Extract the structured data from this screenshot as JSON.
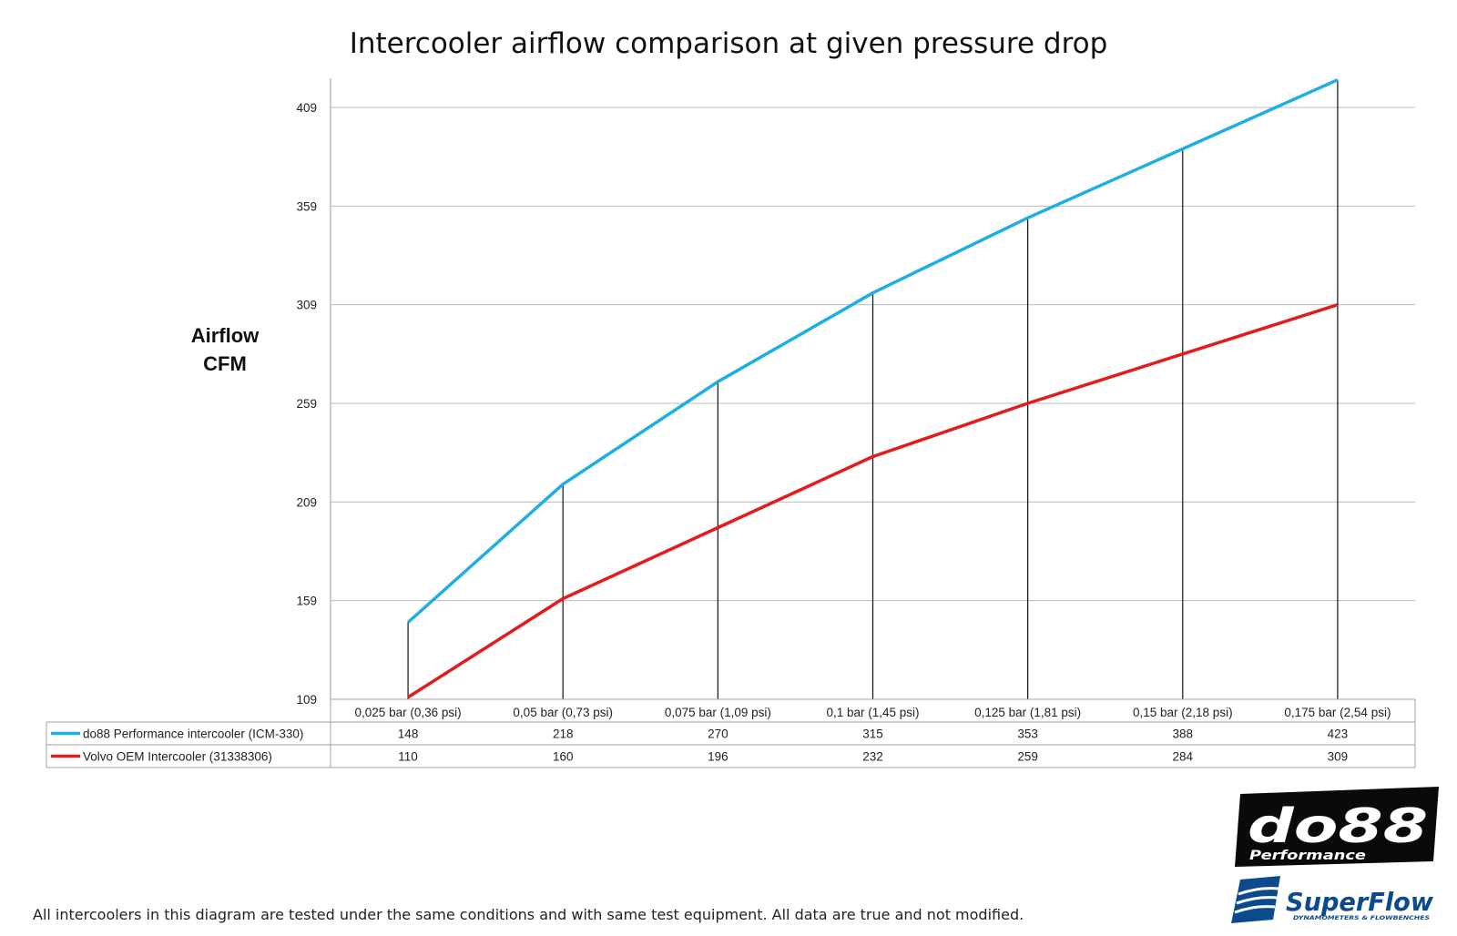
{
  "chart_data": {
    "type": "line",
    "title": "Intercooler airflow comparison at given pressure drop",
    "ylabel": [
      "Airflow",
      "CFM"
    ],
    "xlabel": "",
    "ylim": [
      109,
      423
    ],
    "yticks": [
      109,
      159,
      209,
      259,
      309,
      359,
      409
    ],
    "grid": true,
    "legend": "data-table",
    "categories": [
      "0,025 bar (0,36 psi)",
      "0,05 bar (0,73 psi)",
      "0,075 bar (1,09 psi)",
      "0,1 bar (1,45 psi)",
      "0,125 bar (1,81 psi)",
      "0,15 bar (2,18 psi)",
      "0,175 bar (2,54 psi)"
    ],
    "series": [
      {
        "name": "do88 Performance intercooler (ICM-330)",
        "color": "#1daee5",
        "values": [
          148,
          218,
          270,
          315,
          353,
          388,
          423
        ]
      },
      {
        "name": "Volvo OEM Intercooler (31338306)",
        "color": "#e31b1b",
        "values": [
          110,
          160,
          196,
          232,
          259,
          284,
          309
        ]
      }
    ],
    "footnote": "All intercoolers in this diagram are tested under the same conditions and with same test equipment. All data are true and not modified."
  },
  "logos": {
    "do88_main": "do88",
    "do88_sub": "Performance",
    "superflow_main": "SuperFlow",
    "superflow_sub": "DYNAMOMETERS & FLOWBENCHES"
  }
}
